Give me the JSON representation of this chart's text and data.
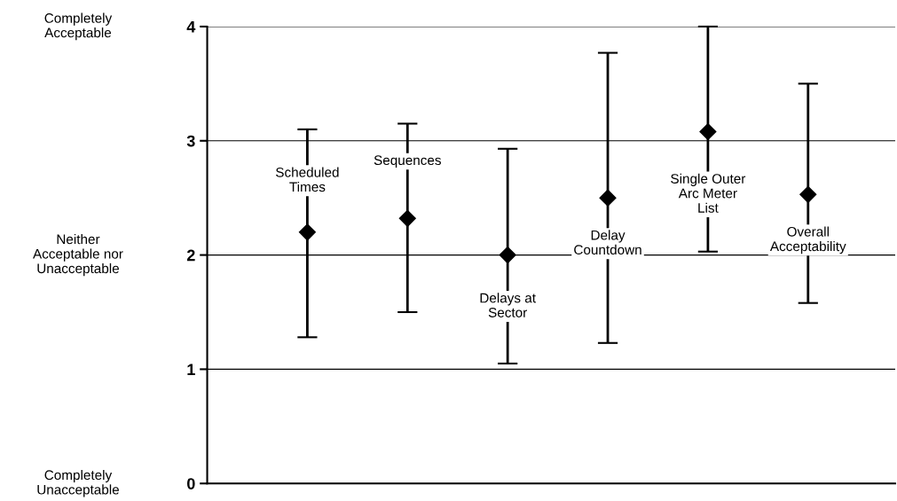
{
  "chart_data": {
    "type": "scatter",
    "categories": [
      "Scheduled Times",
      "Sequences",
      "Delays at Sector",
      "Delay Countdown",
      "Single Outer Arc Meter List",
      "Overall Acceptability"
    ],
    "values": [
      2.2,
      2.32,
      2.0,
      2.5,
      3.08,
      2.53
    ],
    "errors": [
      [
        1.28,
        3.1
      ],
      [
        1.5,
        3.15
      ],
      [
        1.05,
        2.93
      ],
      [
        1.23,
        3.77
      ],
      [
        2.03,
        4.0
      ],
      [
        1.58,
        3.5
      ]
    ],
    "color": "#000000",
    "marker": "diamond",
    "grid": "y",
    "legend": false,
    "ylim": [
      0,
      4
    ],
    "yticks": [
      0,
      1,
      2,
      3,
      4
    ],
    "annotations": [
      "Completely\nAcceptable",
      "Neither\nAcceptable nor\nUnacceptable",
      "Completely\nUnacceptable"
    ]
  }
}
